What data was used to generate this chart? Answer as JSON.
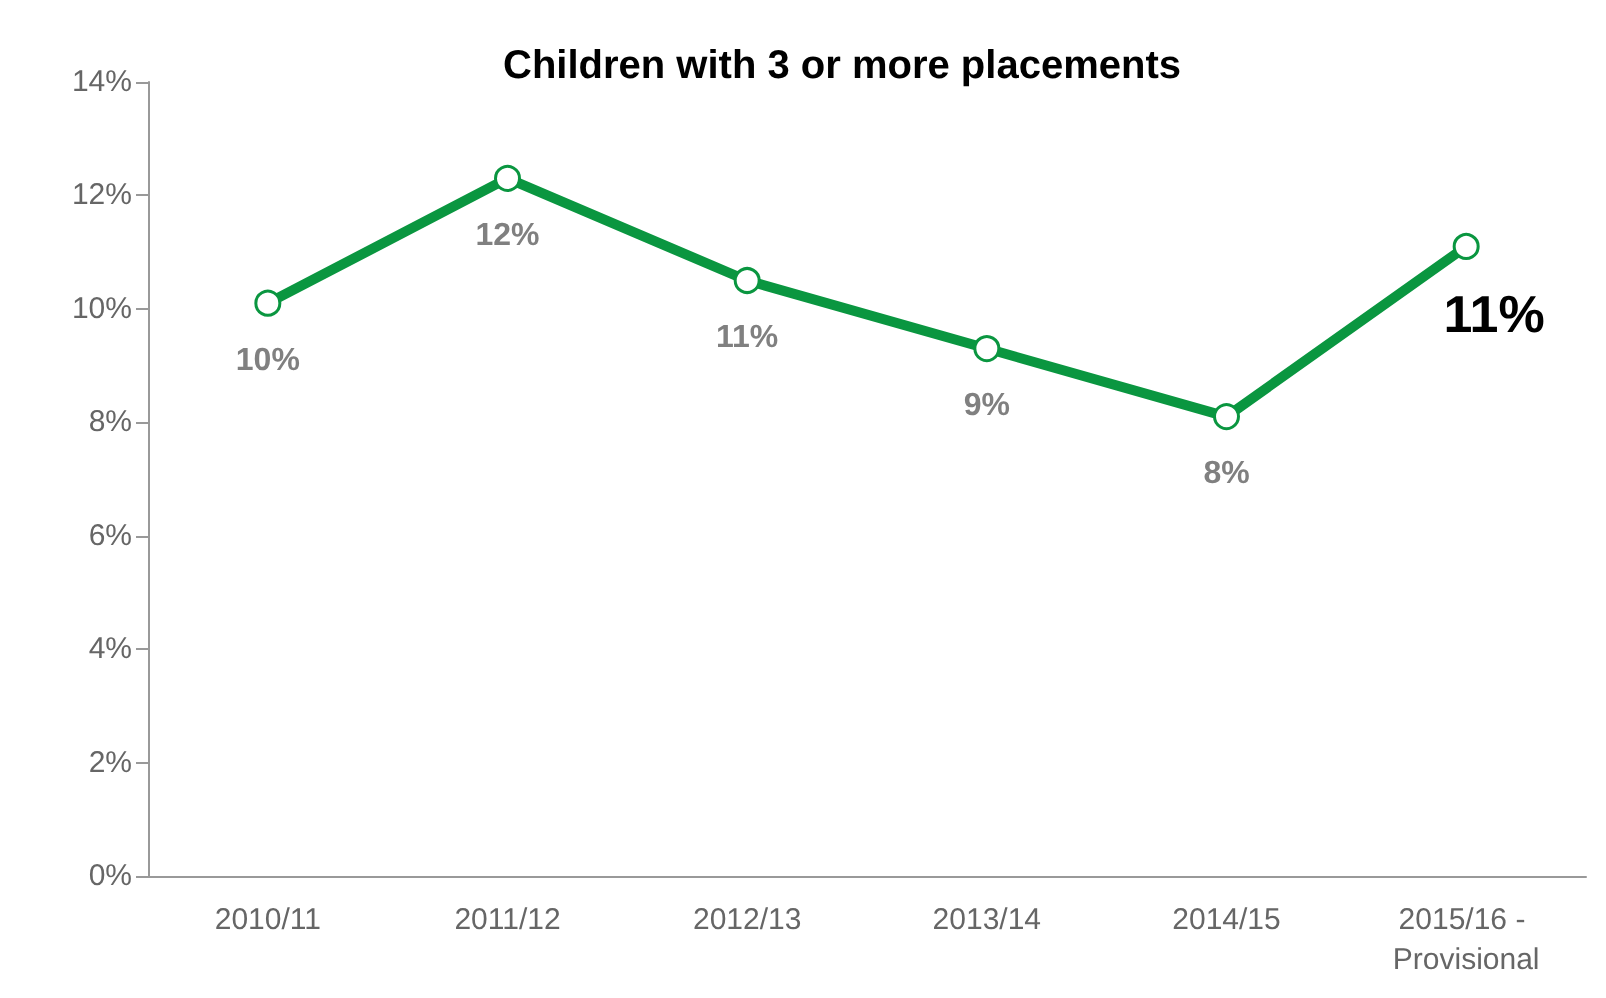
{
  "chart_data": {
    "type": "line",
    "title": "Children with 3 or more placements",
    "categories": [
      "2010/11",
      "2011/12",
      "2012/13",
      "2013/14",
      "2014/15",
      "2015/16 - Provisional"
    ],
    "series": [
      {
        "color": "#0a9640",
        "values": [
          10.1,
          12.3,
          10.5,
          9.3,
          8.1,
          11.1
        ],
        "value_labels": [
          "10%",
          "12%",
          "11%",
          "9%",
          "8%",
          "11%"
        ]
      }
    ],
    "ylim": [
      0,
      14
    ],
    "yticks": [
      {
        "value": 0,
        "label": "0%"
      },
      {
        "value": 2,
        "label": "2%"
      },
      {
        "value": 4,
        "label": "4%"
      },
      {
        "value": 6,
        "label": "6%"
      },
      {
        "value": 8,
        "label": "8%"
      },
      {
        "value": 10,
        "label": "10%"
      },
      {
        "value": 12,
        "label": "12%"
      },
      {
        "value": 14,
        "label": "14%"
      }
    ],
    "grid": false,
    "marker": "circle",
    "line_style": "solid"
  }
}
